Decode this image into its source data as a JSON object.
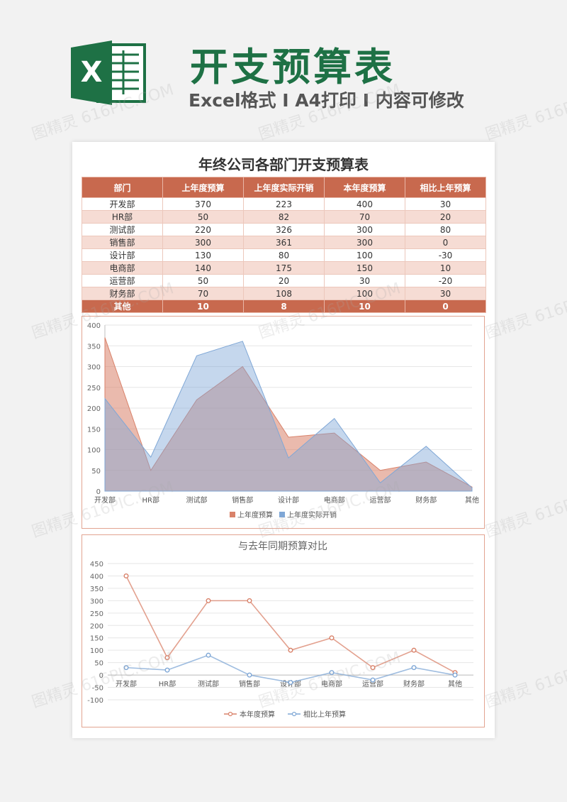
{
  "banner": {
    "title": "开支预算表",
    "subtitle": "Excel格式 I A4打印 I 内容可修改",
    "logo_letter": "X"
  },
  "sheet": {
    "title": "年终公司各部门开支预算表",
    "table": {
      "headers": [
        "部门",
        "上年度预算",
        "上年度实际开销",
        "本年度预算",
        "相比上年预算"
      ],
      "rows": [
        [
          "开发部",
          "370",
          "223",
          "400",
          "30"
        ],
        [
          "HR部",
          "50",
          "82",
          "70",
          "20"
        ],
        [
          "测试部",
          "220",
          "326",
          "300",
          "80"
        ],
        [
          "销售部",
          "300",
          "361",
          "300",
          "0"
        ],
        [
          "设计部",
          "130",
          "80",
          "100",
          "-30"
        ],
        [
          "电商部",
          "140",
          "175",
          "150",
          "10"
        ],
        [
          "运营部",
          "50",
          "20",
          "30",
          "-20"
        ],
        [
          "财务部",
          "70",
          "108",
          "100",
          "30"
        ]
      ],
      "total": [
        "其他",
        "10",
        "8",
        "10",
        "0"
      ]
    }
  },
  "watermark": "图精灵 616PIC.COM",
  "colors": {
    "brand_green": "#1e7145",
    "header_red": "#c8694e",
    "row_alt": "#f6dcd4",
    "series_orange": "#d9826a",
    "series_blue": "#7fa7d6"
  },
  "chart_data": [
    {
      "type": "area",
      "title": "",
      "categories": [
        "开发部",
        "HR部",
        "测试部",
        "销售部",
        "设计部",
        "电商部",
        "运营部",
        "财务部",
        "其他"
      ],
      "series": [
        {
          "name": "上年度预算",
          "values": [
            370,
            50,
            220,
            300,
            130,
            140,
            50,
            70,
            10
          ],
          "color": "#d9826a"
        },
        {
          "name": "上年度实际开销",
          "values": [
            223,
            82,
            326,
            361,
            80,
            175,
            20,
            108,
            8
          ],
          "color": "#7fa7d6"
        }
      ],
      "ylim": [
        0,
        400
      ],
      "yticks": [
        0,
        50,
        100,
        150,
        200,
        250,
        300,
        350,
        400
      ],
      "grid": true,
      "legend": "bottom"
    },
    {
      "type": "line",
      "title": "与去年同期预算对比",
      "categories": [
        "开发部",
        "HR部",
        "测试部",
        "销售部",
        "设计部",
        "电商部",
        "运营部",
        "财务部",
        "其他"
      ],
      "series": [
        {
          "name": "本年度预算",
          "values": [
            400,
            70,
            300,
            300,
            100,
            150,
            30,
            100,
            10
          ],
          "color": "#d9826a"
        },
        {
          "name": "相比上年预算",
          "values": [
            30,
            20,
            80,
            0,
            -30,
            10,
            -20,
            30,
            0
          ],
          "color": "#7fa7d6"
        }
      ],
      "ylim": [
        -100,
        450
      ],
      "yticks": [
        -100,
        -50,
        0,
        50,
        100,
        150,
        200,
        250,
        300,
        350,
        400,
        450
      ],
      "grid": true,
      "legend": "bottom"
    }
  ]
}
